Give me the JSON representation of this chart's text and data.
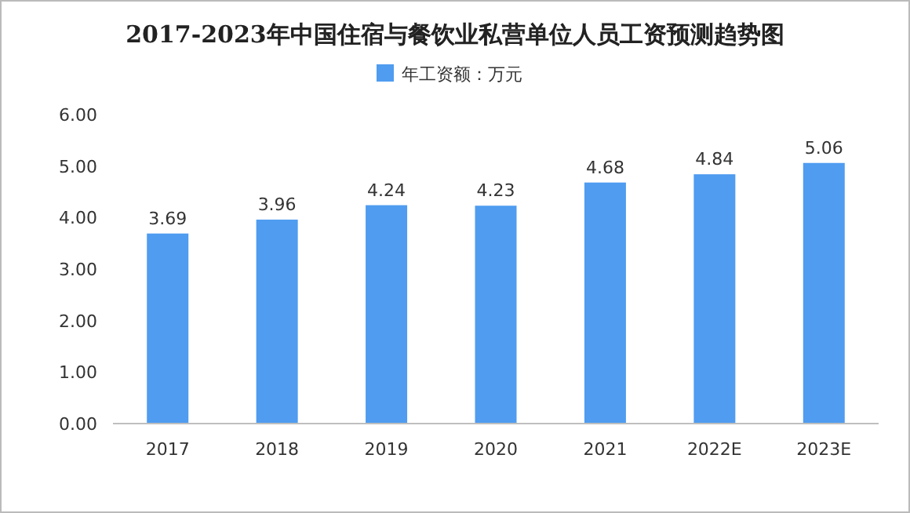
{
  "chart_data": {
    "type": "bar",
    "title": "2017-2023年中国住宿与餐饮业私营单位人员工资预测趋势图",
    "categories": [
      "2017",
      "2018",
      "2019",
      "2020",
      "2021",
      "2022E",
      "2023E"
    ],
    "series": [
      {
        "name": "年工资额：万元",
        "color": "#4f9cf0",
        "values": [
          3.69,
          3.96,
          4.24,
          4.23,
          4.68,
          4.84,
          5.06
        ]
      }
    ],
    "ylim": [
      0,
      6
    ],
    "yticks": [
      {
        "value": 0,
        "label": "0.00"
      },
      {
        "value": 1,
        "label": "1.00"
      },
      {
        "value": 2,
        "label": "2.00"
      },
      {
        "value": 3,
        "label": "3.00"
      },
      {
        "value": 4,
        "label": "4.00"
      },
      {
        "value": 5,
        "label": "5.00"
      },
      {
        "value": 6,
        "label": "6.00"
      }
    ],
    "legend": "top",
    "data_labels": true
  }
}
